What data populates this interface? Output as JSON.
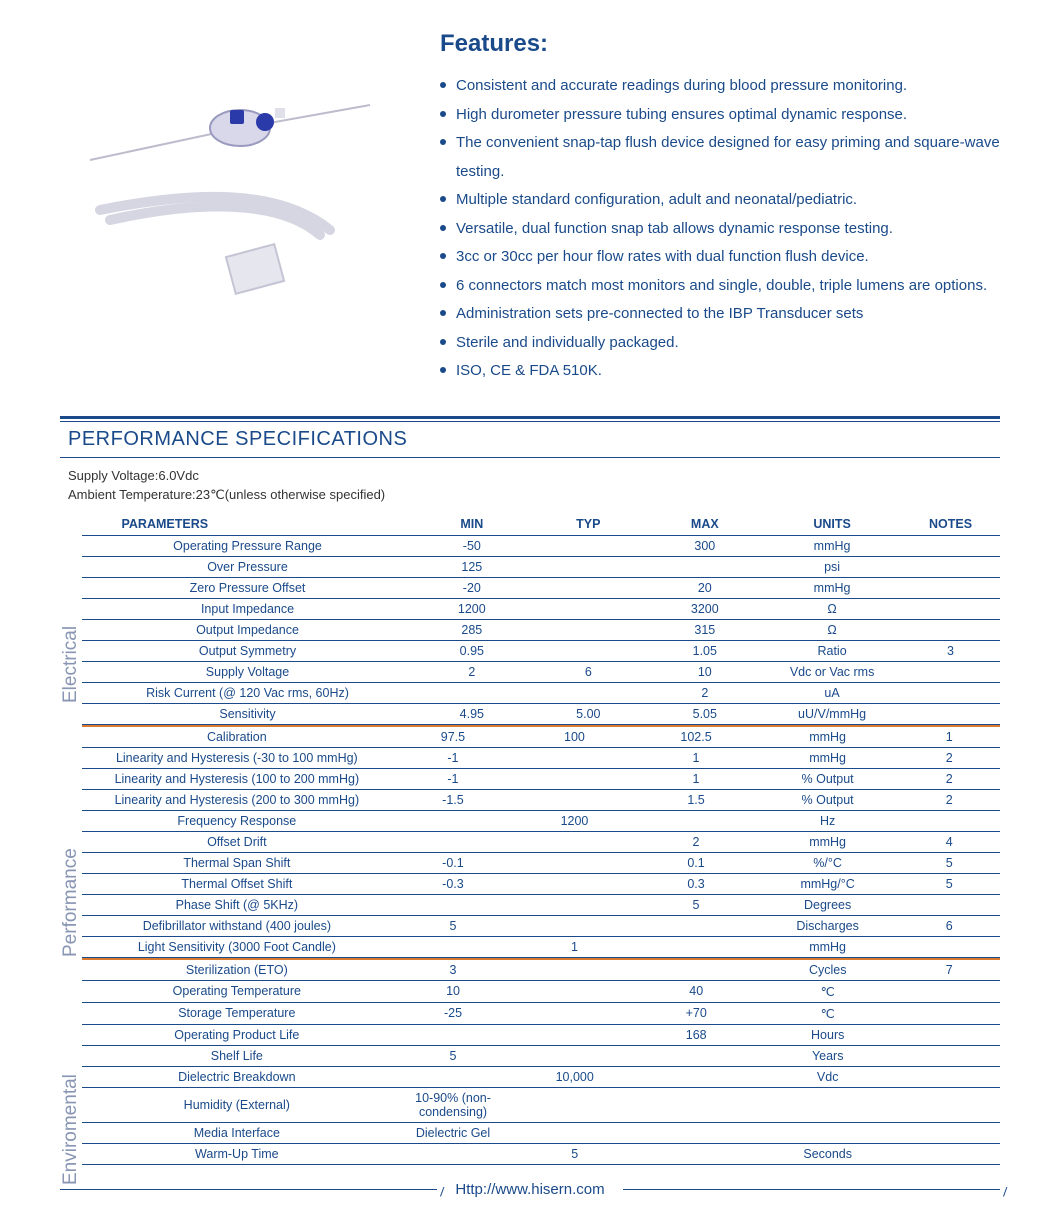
{
  "colors": {
    "primary": "#1a4a8a",
    "sectionDivider": "#d97b2e",
    "muted": "#8896b3",
    "background": "#ffffff"
  },
  "features": {
    "title": "Features:",
    "items": [
      "Consistent and accurate readings during blood pressure monitoring.",
      "High durometer pressure tubing ensures optimal dynamic response.",
      "The convenient snap-tap flush device designed for easy priming and square-wave testing.",
      "Multiple standard configuration, adult and neonatal/pediatric.",
      "Versatile, dual function snap tab allows dynamic response testing.",
      "3cc or 30cc per hour flow rates with dual function flush device.",
      "6 connectors match most monitors and single, double, triple lumens are options.",
      "Administration sets pre-connected to the IBP Transducer sets",
      "Sterile and individually packaged.",
      "ISO, CE & FDA 510K."
    ]
  },
  "spec": {
    "title": "PERFORMANCE SPECIFICATIONS",
    "meta1": "Supply Voltage:6.0Vdc",
    "meta2": "Ambient Temperature:23℃(unless otherwise specified)",
    "columns": [
      "PARAMETERS",
      "MIN",
      "TYP",
      "MAX",
      "UNITS",
      "NOTES"
    ],
    "colWidths": [
      "300px",
      "110px",
      "110px",
      "110px",
      "130px",
      "90px"
    ],
    "sections": [
      {
        "label": "Electrical",
        "labelTop": 190,
        "rows": [
          {
            "p": "Operating Pressure Range",
            "min": "-50",
            "typ": "",
            "max": "300",
            "units": "mmHg",
            "notes": ""
          },
          {
            "p": "Over  Pressure",
            "min": "125",
            "typ": "",
            "max": "",
            "units": "psi",
            "notes": ""
          },
          {
            "p": "Zero Pressure Offset",
            "min": "-20",
            "typ": "",
            "max": "20",
            "units": "mmHg",
            "notes": ""
          },
          {
            "p": "Input Impedance",
            "min": "1200",
            "typ": "",
            "max": "3200",
            "units": "Ω",
            "notes": ""
          },
          {
            "p": "Output Impedance",
            "min": "285",
            "typ": "",
            "max": "315",
            "units": "Ω",
            "notes": ""
          },
          {
            "p": "Output Symmetry",
            "min": "0.95",
            "typ": "",
            "max": "1.05",
            "units": "Ratio",
            "notes": "3"
          },
          {
            "p": "Supply Voltage",
            "min": "2",
            "typ": "6",
            "max": "10",
            "units": "Vdc or Vac rms",
            "notes": ""
          },
          {
            "p": "Risk Current (@ 120 Vac rms, 60Hz)",
            "min": "",
            "typ": "",
            "max": "2",
            "units": "uA",
            "notes": ""
          },
          {
            "p": "Sensitivity",
            "min": "4.95",
            "typ": "5.00",
            "max": "5.05",
            "units": "uU/V/mmHg",
            "notes": ""
          }
        ]
      },
      {
        "label": "Performance",
        "labelTop": 230,
        "rows": [
          {
            "p": "Calibration",
            "min": "97.5",
            "typ": "100",
            "max": "102.5",
            "units": "mmHg",
            "notes": "1"
          },
          {
            "p": "Linearity and Hysteresis (-30 to 100 mmHg)",
            "min": "-1",
            "typ": "",
            "max": "1",
            "units": "mmHg",
            "notes": "2"
          },
          {
            "p": "Linearity and Hysteresis (100 to 200 mmHg)",
            "min": "-1",
            "typ": "",
            "max": "1",
            "units": "% Output",
            "notes": "2"
          },
          {
            "p": "Linearity and Hysteresis (200 to 300 mmHg)",
            "min": "-1.5",
            "typ": "",
            "max": "1.5",
            "units": "% Output",
            "notes": "2"
          },
          {
            "p": "Frequency Response",
            "min": "",
            "typ": "1200",
            "max": "",
            "units": "Hz",
            "notes": ""
          },
          {
            "p": "Offset Drift",
            "min": "",
            "typ": "",
            "max": "2",
            "units": "mmHg",
            "notes": "4"
          },
          {
            "p": "Thermal Span Shift",
            "min": "-0.1",
            "typ": "",
            "max": "0.1",
            "units": "%/°C",
            "notes": "5"
          },
          {
            "p": "Thermal Offset Shift",
            "min": "-0.3",
            "typ": "",
            "max": "0.3",
            "units": "mmHg/°C",
            "notes": "5"
          },
          {
            "p": "Phase Shift (@ 5KHz)",
            "min": "",
            "typ": "",
            "max": "5",
            "units": "Degrees",
            "notes": ""
          },
          {
            "p": "Defibrillator withstand (400 joules)",
            "min": "5",
            "typ": "",
            "max": "",
            "units": "Discharges",
            "notes": "6"
          },
          {
            "p": "Light Sensitivity (3000 Foot Candle)",
            "min": "",
            "typ": "1",
            "max": "",
            "units": "mmHg",
            "notes": ""
          }
        ]
      },
      {
        "label": "Enviromental",
        "labelTop": 225,
        "rows": [
          {
            "p": "Sterilization (ETO)",
            "min": "3",
            "typ": "",
            "max": "",
            "units": "Cycles",
            "notes": "7"
          },
          {
            "p": "Operating Temperature",
            "min": "10",
            "typ": "",
            "max": "40",
            "units": "℃",
            "notes": ""
          },
          {
            "p": "Storage Temperature",
            "min": "-25",
            "typ": "",
            "max": "+70",
            "units": "℃",
            "notes": ""
          },
          {
            "p": "Operating Product Life",
            "min": "",
            "typ": "",
            "max": "168",
            "units": "Hours",
            "notes": ""
          },
          {
            "p": "Shelf Life",
            "min": "5",
            "typ": "",
            "max": "",
            "units": "Years",
            "notes": ""
          },
          {
            "p": "Dielectric Breakdown",
            "min": "",
            "typ": "10,000",
            "max": "",
            "units": "Vdc",
            "notes": ""
          },
          {
            "p": "Humidity (External)",
            "min": "10-90% (non-condensing)",
            "typ": "",
            "max": "",
            "units": "",
            "notes": ""
          },
          {
            "p": "Media Interface",
            "min": "Dielectric Gel",
            "typ": "",
            "max": "",
            "units": "",
            "notes": ""
          },
          {
            "p": "Warm-Up Time",
            "min": "",
            "typ": "5",
            "max": "",
            "units": "Seconds",
            "notes": ""
          }
        ]
      }
    ]
  },
  "footer": {
    "url": "Http://www.hisern.com"
  }
}
